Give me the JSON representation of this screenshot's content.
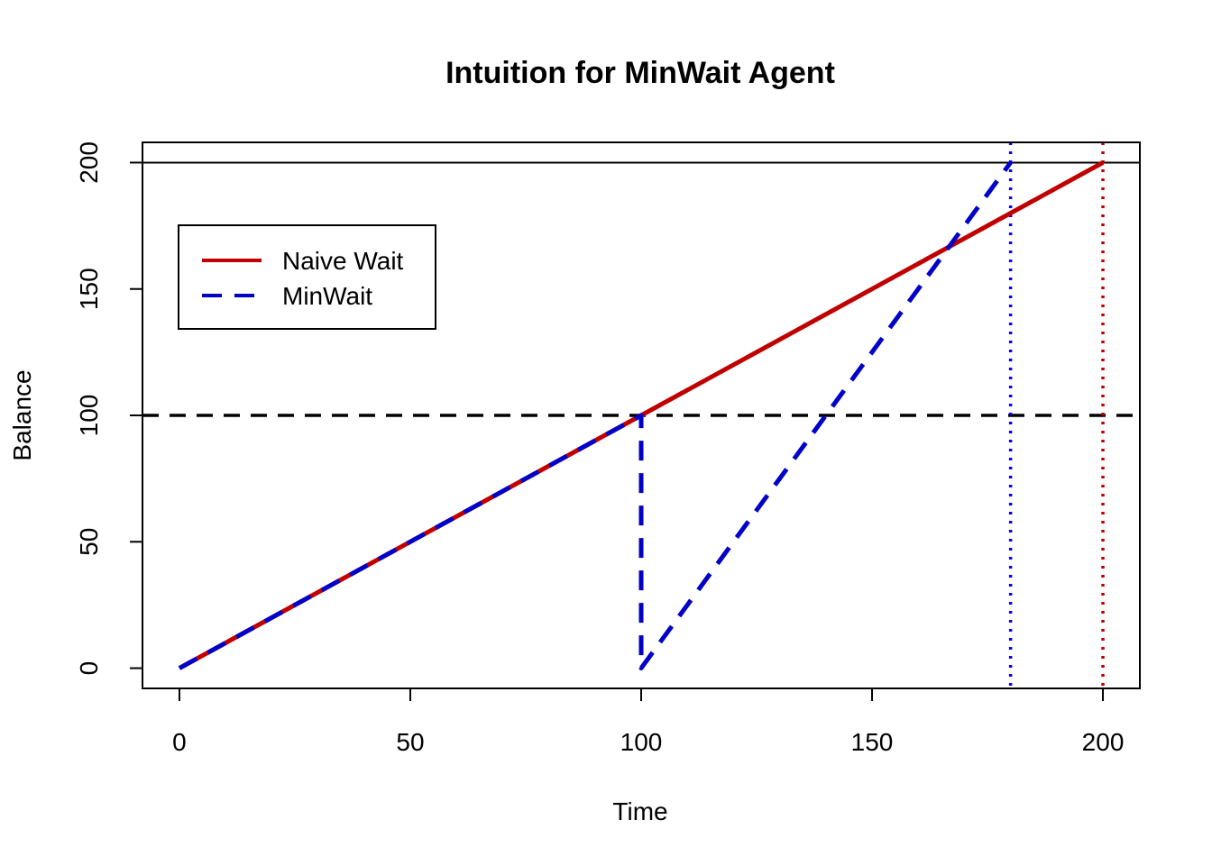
{
  "chart_data": {
    "type": "line",
    "title": "Intuition for MinWait Agent",
    "xlabel": "Time",
    "ylabel": "Balance",
    "xlim": [
      -8,
      208
    ],
    "ylim": [
      -8,
      208
    ],
    "x_ticks": [
      0,
      50,
      100,
      150,
      200
    ],
    "y_ticks": [
      0,
      50,
      100,
      150,
      200
    ],
    "grid": false,
    "legend_position": "top-left",
    "series": [
      {
        "name": "Naive Wait",
        "color": "#c00000",
        "style": "solid",
        "points": [
          [
            0,
            0
          ],
          [
            200,
            200
          ]
        ]
      },
      {
        "name": "MinWait",
        "color": "#0000c8",
        "style": "dashed",
        "points": [
          [
            0,
            0
          ],
          [
            100,
            100
          ],
          [
            100,
            0
          ],
          [
            180,
            200
          ]
        ]
      }
    ],
    "reference_lines": [
      {
        "orientation": "horizontal",
        "value": 200,
        "color": "#000000",
        "style": "solid"
      },
      {
        "orientation": "horizontal",
        "value": 100,
        "color": "#000000",
        "style": "dashed"
      },
      {
        "orientation": "vertical",
        "value": 180,
        "color": "#0000ff",
        "style": "dotted"
      },
      {
        "orientation": "vertical",
        "value": 200,
        "color": "#c00000",
        "style": "dotted"
      }
    ]
  }
}
